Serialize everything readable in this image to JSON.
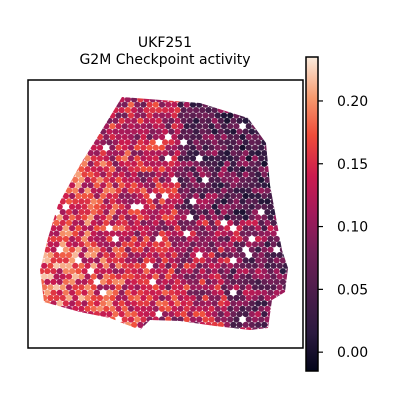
{
  "chart_data": {
    "type": "heatmap",
    "title": "UKF251",
    "subtitle": "G2M Checkpoint activity",
    "xlabel": "",
    "ylabel": "",
    "colorbar": {
      "colormap": "rocket",
      "range": [
        -0.015,
        0.235
      ],
      "ticks": [
        0.0,
        0.05,
        0.1,
        0.15,
        0.2
      ],
      "tick_labels": [
        "0.00",
        "0.05",
        "0.10",
        "0.15",
        "0.20"
      ],
      "position": "right"
    },
    "grid": false,
    "spots": {
      "shape": "hexagonal spatial transcriptomics spots",
      "value_range": [
        0.0,
        0.22
      ],
      "high_value_region": "left",
      "low_value_region": "upper-right"
    }
  }
}
